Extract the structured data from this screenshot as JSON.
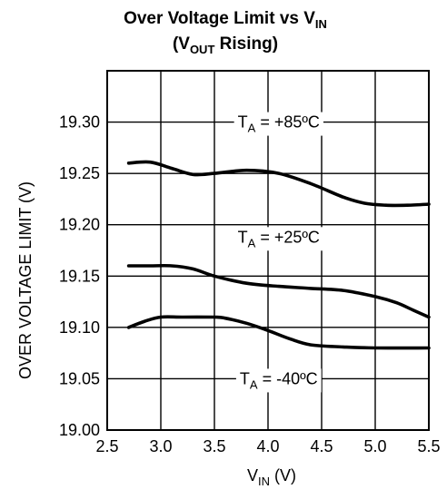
{
  "chart_data": {
    "type": "line",
    "title": {
      "line1_main": "Over Voltage Limit vs V",
      "line1_sub": "IN",
      "line2_pre": "(V",
      "line2_sub": "OUT",
      "line2_post": " Rising)"
    },
    "xlabel": {
      "main": "V",
      "sub": "IN",
      "post": " (V)"
    },
    "ylabel": "OVER VOLTAGE LIMIT (V)",
    "xlim": [
      2.5,
      5.5
    ],
    "ylim": [
      19.0,
      19.35
    ],
    "xticks": [
      "2.5",
      "3.0",
      "3.5",
      "4.0",
      "4.5",
      "5.0",
      "5.5"
    ],
    "yticks": [
      "19.00",
      "19.05",
      "19.10",
      "19.15",
      "19.20",
      "19.25",
      "19.30"
    ],
    "grid": true,
    "series": [
      {
        "name": "T_A = +85°C",
        "x": [
          2.7,
          2.9,
          3.1,
          3.3,
          3.5,
          3.8,
          4.1,
          4.4,
          4.7,
          4.9,
          5.1,
          5.3,
          5.5
        ],
        "y": [
          19.26,
          19.261,
          19.255,
          19.249,
          19.25,
          19.253,
          19.25,
          19.24,
          19.227,
          19.221,
          19.219,
          19.219,
          19.22
        ]
      },
      {
        "name": "T_A = +25°C",
        "x": [
          2.7,
          2.9,
          3.1,
          3.3,
          3.5,
          3.8,
          4.1,
          4.4,
          4.7,
          5.0,
          5.2,
          5.35,
          5.5
        ],
        "y": [
          19.16,
          19.16,
          19.16,
          19.157,
          19.15,
          19.143,
          19.14,
          19.138,
          19.136,
          19.13,
          19.124,
          19.117,
          19.11
        ]
      },
      {
        "name": "T_A = -40°C",
        "x": [
          2.7,
          2.85,
          3.0,
          3.2,
          3.5,
          3.6,
          3.8,
          4.0,
          4.2,
          4.4,
          4.7,
          5.0,
          5.5
        ],
        "y": [
          19.1,
          19.106,
          19.11,
          19.11,
          19.11,
          19.109,
          19.104,
          19.097,
          19.089,
          19.083,
          19.081,
          19.08,
          19.08
        ]
      }
    ],
    "annotations": [
      {
        "series": 0,
        "pre": "T",
        "sub": "A",
        "post": " = +85ºC",
        "x": 4.1,
        "y": 19.3
      },
      {
        "series": 1,
        "pre": "T",
        "sub": "A",
        "post": " = +25ºC",
        "x": 4.1,
        "y": 19.188
      },
      {
        "series": 2,
        "pre": "T",
        "sub": "A",
        "post": " = -40ºC",
        "x": 4.1,
        "y": 19.05
      }
    ]
  }
}
